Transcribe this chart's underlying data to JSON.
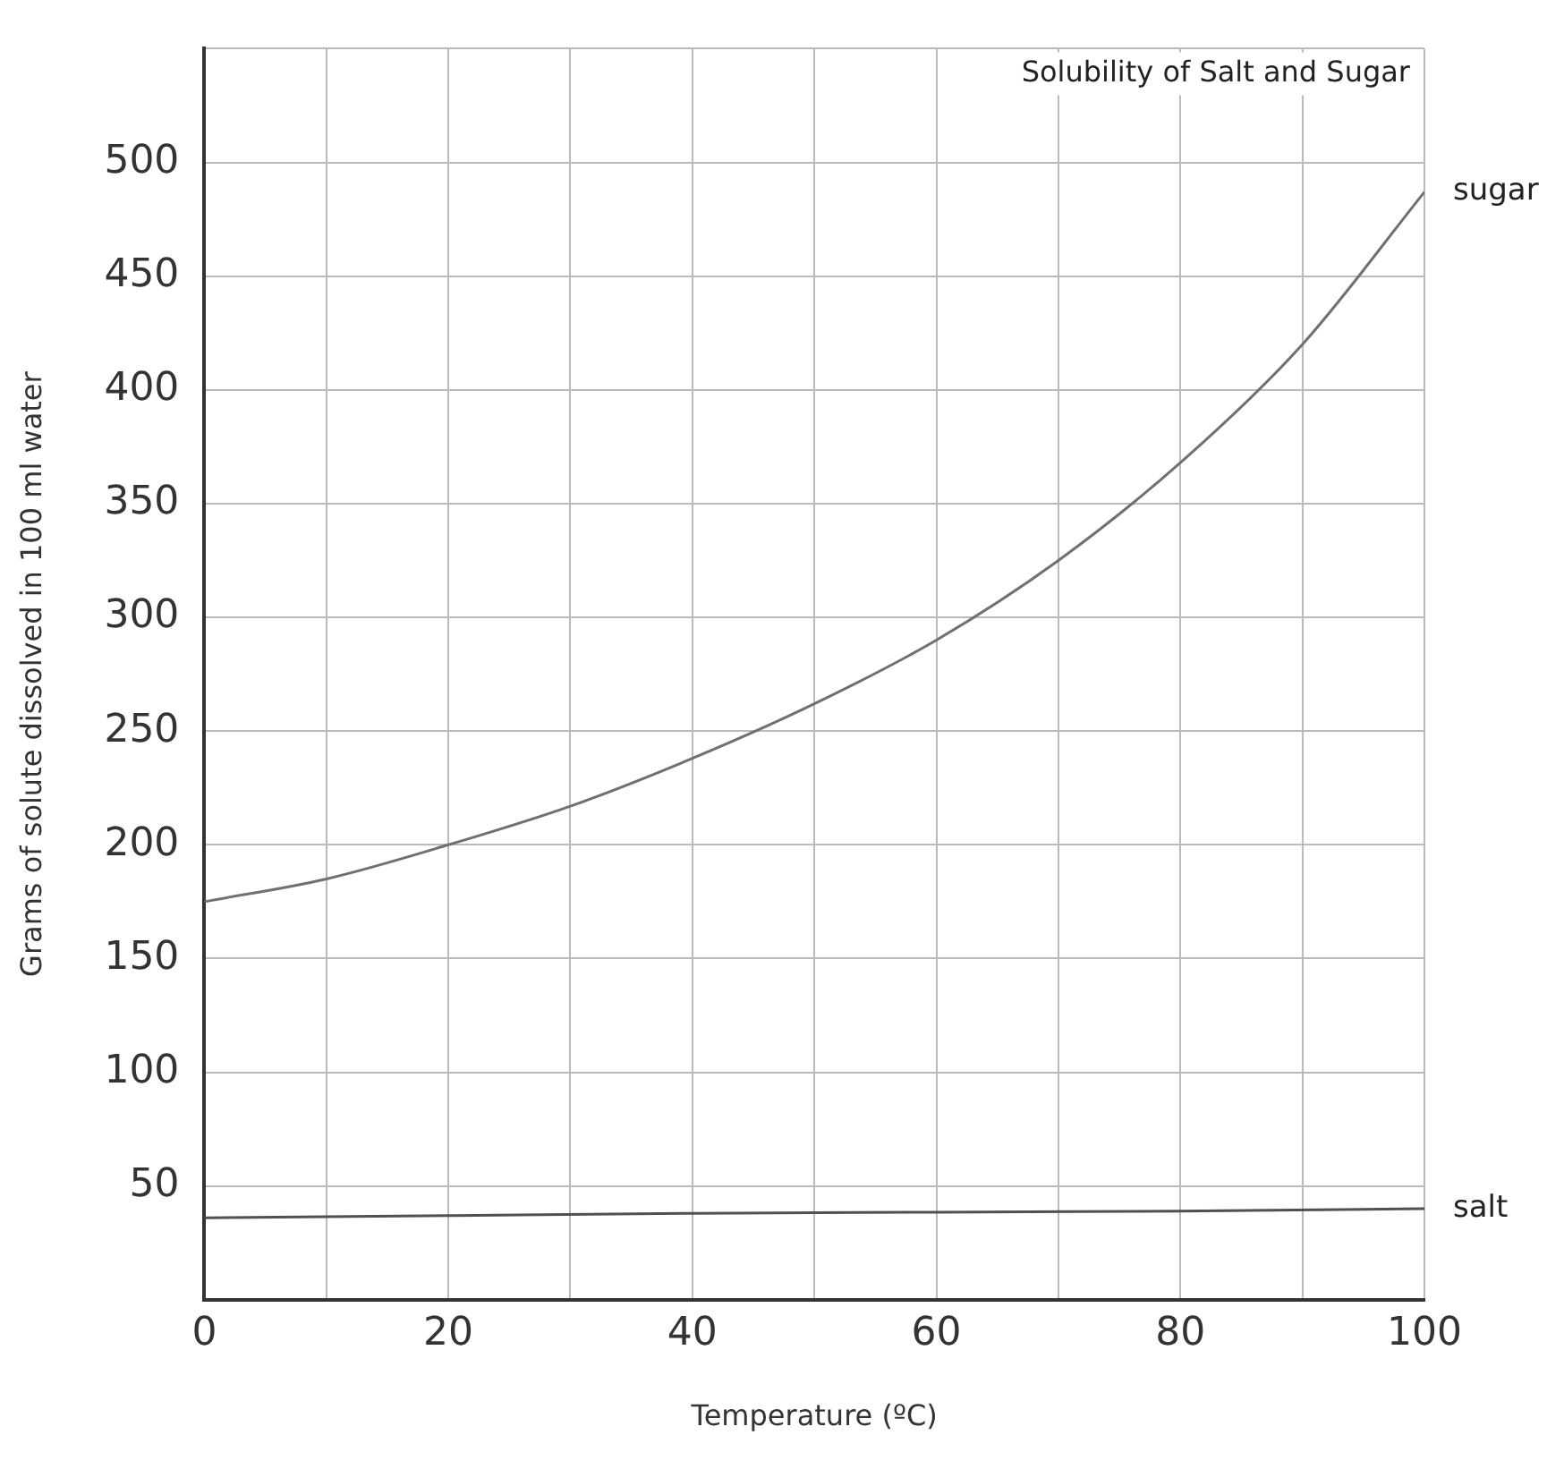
{
  "chart_data": {
    "type": "line",
    "title": "Solubility of Salt and Sugar",
    "xlabel": "Temperature (ºC)",
    "ylabel": "Grams of solute dissolved in 100 ml water",
    "series": [
      {
        "name": "sugar",
        "color": "#707070",
        "x": [
          0,
          10,
          20,
          30,
          40,
          50,
          60,
          70,
          80,
          90,
          100
        ],
        "values": [
          175,
          185,
          200,
          217,
          238,
          262,
          290,
          325,
          368,
          420,
          487
        ]
      },
      {
        "name": "salt",
        "color": "#505050",
        "x": [
          0,
          20,
          40,
          60,
          80,
          100
        ],
        "values": [
          36,
          37,
          38,
          38.5,
          39,
          40
        ]
      }
    ],
    "xlim": [
      0,
      100
    ],
    "xticks": [
      0,
      {
        "value": 10,
        "label": null
      },
      20,
      {
        "value": 30,
        "label": null
      },
      40,
      {
        "value": 50,
        "label": null
      },
      60,
      {
        "value": 70,
        "label": null
      },
      80,
      {
        "value": 90,
        "label": null
      },
      100
    ],
    "ylim": [
      0,
      550
    ],
    "yticks": [
      {
        "value": 0,
        "label": null
      },
      50,
      100,
      150,
      200,
      250,
      300,
      350,
      400,
      450,
      500,
      {
        "value": 550,
        "label": null
      }
    ],
    "grid": true,
    "legend": false,
    "marker": "none",
    "line_style": "solid"
  }
}
